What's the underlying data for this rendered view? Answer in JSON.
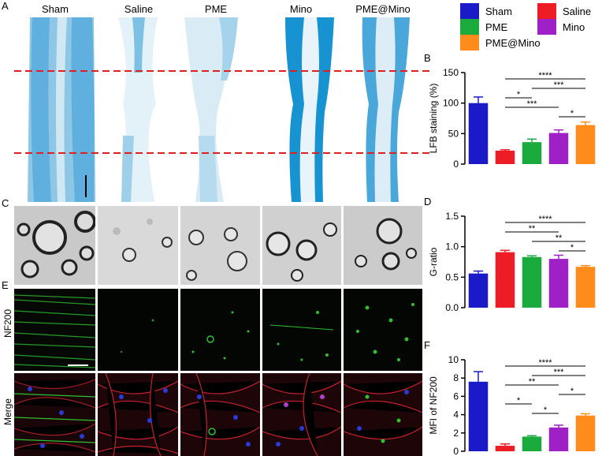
{
  "panel_letters": {
    "a": "A",
    "b": "B",
    "c": "C",
    "d": "D",
    "e": "E",
    "f": "F"
  },
  "groups": [
    "Sham",
    "Saline",
    "PME",
    "Mino",
    "PME@Mino"
  ],
  "row_labels": {
    "nf200": "NF200",
    "merge": "Merge"
  },
  "colors": {
    "Sham": "#1a1ac8",
    "Saline": "#ee1c24",
    "PME": "#1aab3c",
    "Mino": "#a020c8",
    "PME@Mino": "#ff8c1a"
  },
  "legend": [
    {
      "label": "Sham",
      "color": "#1a1ac8"
    },
    {
      "label": "Saline",
      "color": "#ee1c24"
    },
    {
      "label": "PME",
      "color": "#1aab3c"
    },
    {
      "label": "Mino",
      "color": "#a020c8"
    },
    {
      "label": "PME@Mino",
      "color": "#ff8c1a"
    }
  ],
  "chart_data": [
    {
      "id": "B",
      "type": "bar",
      "categories": [
        "Sham",
        "Saline",
        "PME",
        "Mino",
        "PME@Mino"
      ],
      "values": [
        100,
        22,
        36,
        51,
        64
      ],
      "errors": [
        10,
        1.5,
        5,
        5,
        5
      ],
      "ylabel": "LFB staining (%)",
      "ylim": [
        0,
        150
      ],
      "yticks": [
        0,
        50,
        100,
        150
      ],
      "significance": [
        {
          "from": "Saline",
          "to": "PME@Mino",
          "label": "****"
        },
        {
          "from": "PME",
          "to": "PME@Mino",
          "label": "***"
        },
        {
          "from": "Saline",
          "to": "PME",
          "label": "*"
        },
        {
          "from": "Saline",
          "to": "Mino",
          "label": "***"
        },
        {
          "from": "Mino",
          "to": "PME@Mino",
          "label": "*"
        }
      ]
    },
    {
      "id": "D",
      "type": "bar",
      "categories": [
        "Sham",
        "Saline",
        "PME",
        "Mino",
        "PME@Mino"
      ],
      "values": [
        0.56,
        0.91,
        0.83,
        0.8,
        0.67
      ],
      "errors": [
        0.04,
        0.03,
        0.02,
        0.06,
        0.02
      ],
      "ylabel": "G-ratio",
      "ylim": [
        0,
        1.5
      ],
      "yticks": [
        0.0,
        0.5,
        1.0,
        1.5
      ],
      "significance": [
        {
          "from": "Saline",
          "to": "PME@Mino",
          "label": "****"
        },
        {
          "from": "Saline",
          "to": "Mino",
          "label": "**"
        },
        {
          "from": "PME",
          "to": "PME@Mino",
          "label": "**"
        },
        {
          "from": "Mino",
          "to": "PME@Mino",
          "label": "*"
        }
      ]
    },
    {
      "id": "F",
      "type": "bar",
      "categories": [
        "Sham",
        "Saline",
        "PME",
        "Mino",
        "PME@Mino"
      ],
      "values": [
        7.6,
        0.6,
        1.6,
        2.6,
        3.9
      ],
      "errors": [
        1.1,
        0.2,
        0.1,
        0.25,
        0.2
      ],
      "ylabel": "MFI of NF200",
      "ylim": [
        0,
        10
      ],
      "yticks": [
        0,
        2,
        4,
        6,
        8,
        10
      ],
      "significance": [
        {
          "from": "Saline",
          "to": "PME@Mino",
          "label": "****"
        },
        {
          "from": "PME",
          "to": "PME@Mino",
          "label": "***"
        },
        {
          "from": "Saline",
          "to": "Mino",
          "label": "**"
        },
        {
          "from": "Mino",
          "to": "PME@Mino",
          "label": "*"
        },
        {
          "from": "Saline",
          "to": "PME",
          "label": "*"
        },
        {
          "from": "PME",
          "to": "Mino",
          "label": "*"
        }
      ]
    }
  ]
}
